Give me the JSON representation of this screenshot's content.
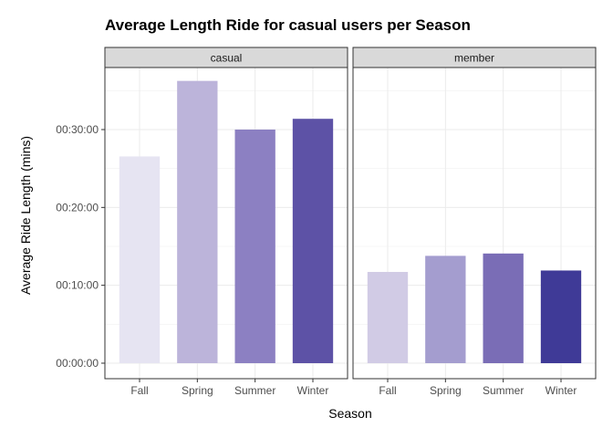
{
  "chart_data": {
    "type": "bar",
    "title": "Average Length Ride for casual users per Season",
    "xlabel": "Season",
    "ylabel": "Average Ride Length (mins)",
    "categories": [
      "Fall",
      "Spring",
      "Summer",
      "Winter"
    ],
    "y_unit": "seconds",
    "ylim": [
      0,
      2300
    ],
    "y_ticks": [
      0,
      600,
      1200,
      1800
    ],
    "y_tick_labels": [
      "00:00:00",
      "00:10:00",
      "00:20:00",
      "00:30:00"
    ],
    "facets": [
      {
        "name": "casual",
        "values": [
          1593,
          2175,
          1800,
          1883
        ],
        "colors": [
          "#e6e4f2",
          "#bcb4da",
          "#8c80c2",
          "#5d52a6"
        ]
      },
      {
        "name": "member",
        "values": [
          703,
          827,
          845,
          714
        ],
        "colors": [
          "#d1cbe5",
          "#a49dcf",
          "#7a6db6",
          "#3f3a97"
        ]
      }
    ],
    "grid": true,
    "legend": "none"
  }
}
